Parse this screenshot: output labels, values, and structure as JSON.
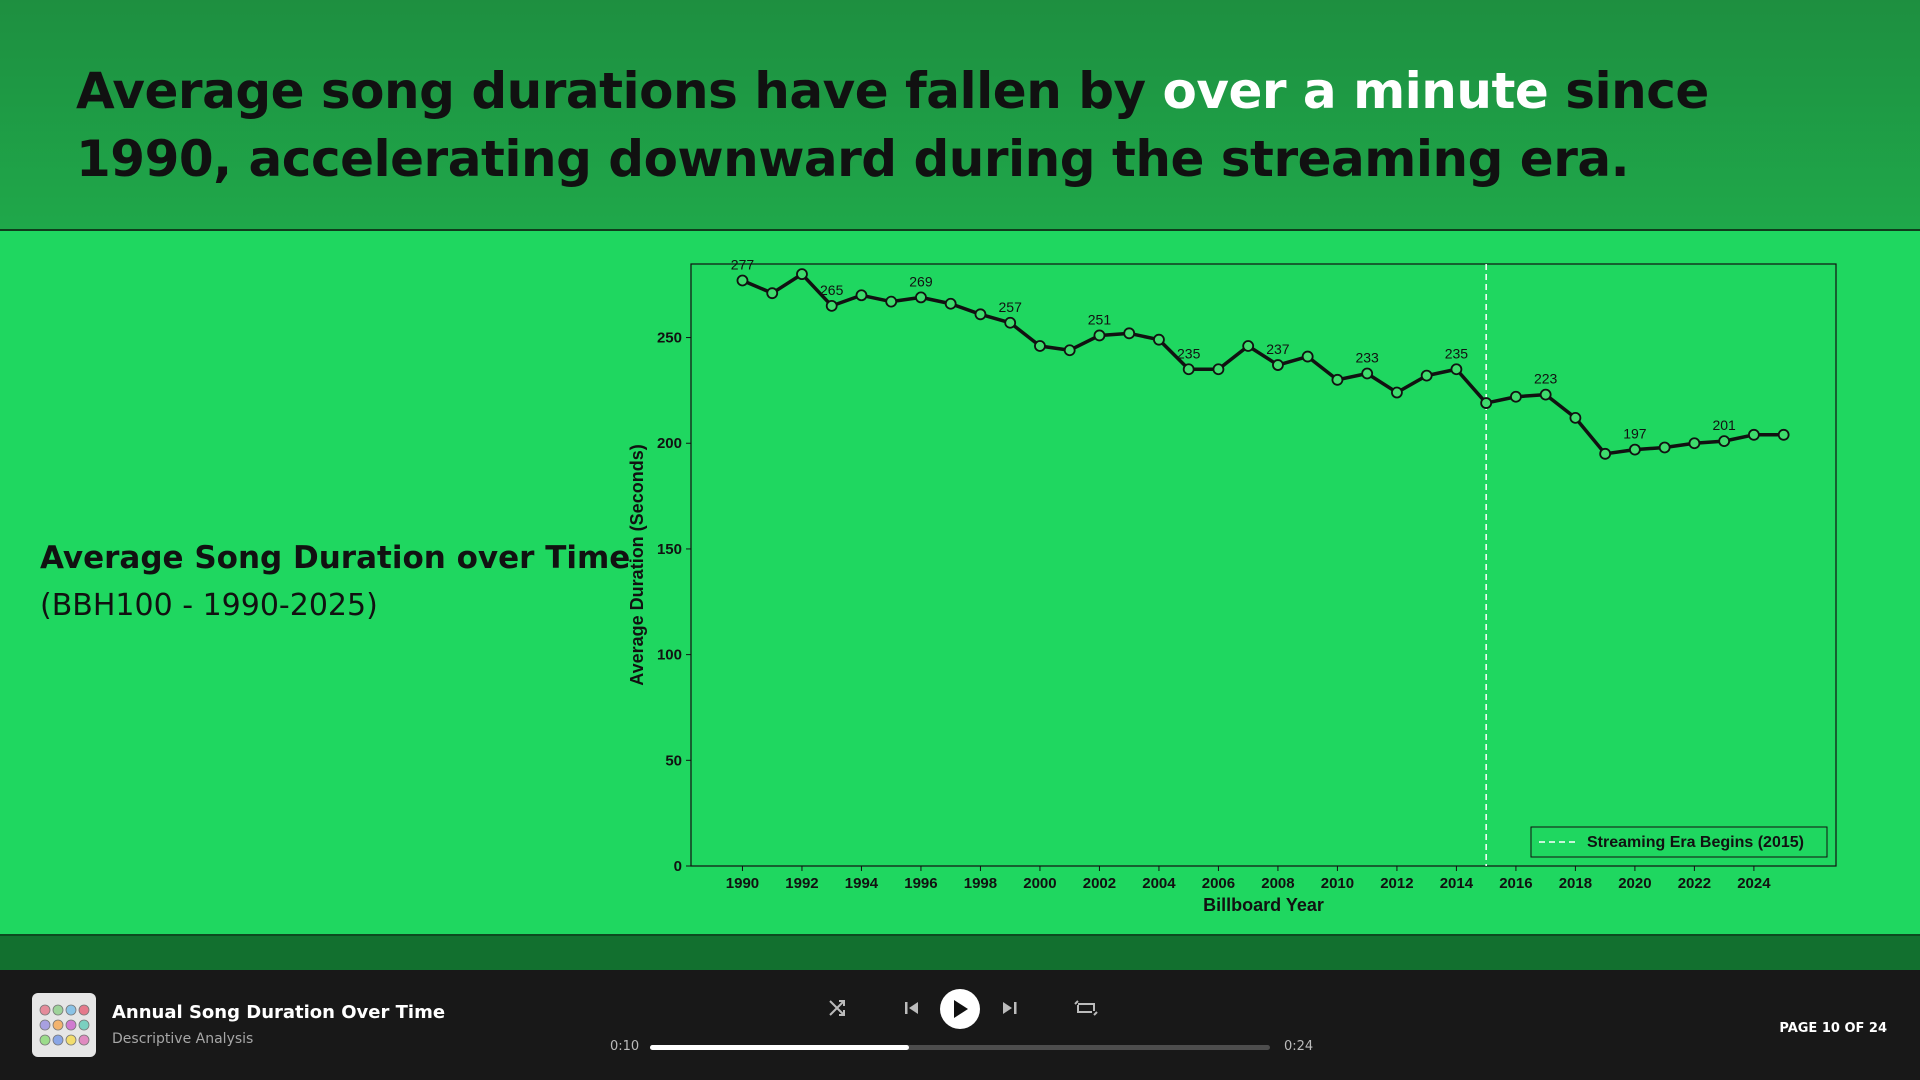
{
  "header": {
    "title_parts": [
      "Average song durations have fallen by ",
      "over a minute",
      " since",
      "1990, accelerating downward during the streaming era."
    ]
  },
  "side": {
    "title": "Average Song Duration over Time",
    "subtitle": "(BBH100 - 1990-2025)"
  },
  "chart_data": {
    "type": "line",
    "x": [
      1990,
      1991,
      1992,
      1993,
      1994,
      1995,
      1996,
      1997,
      1998,
      1999,
      2000,
      2001,
      2002,
      2003,
      2004,
      2005,
      2006,
      2007,
      2008,
      2009,
      2010,
      2011,
      2012,
      2013,
      2014,
      2015,
      2016,
      2017,
      2018,
      2019,
      2020,
      2021,
      2022,
      2023,
      2024,
      2025
    ],
    "values": [
      277,
      271,
      280,
      265,
      270,
      267,
      269,
      266,
      261,
      257,
      246,
      244,
      251,
      252,
      249,
      235,
      235,
      246,
      237,
      241,
      230,
      233,
      224,
      232,
      235,
      219,
      222,
      223,
      212,
      195,
      197,
      198,
      200,
      201,
      204,
      204
    ],
    "value_labels": [
      "277",
      null,
      null,
      "265",
      null,
      null,
      "269",
      null,
      null,
      "257",
      null,
      null,
      "251",
      null,
      null,
      "235",
      null,
      null,
      "237",
      null,
      null,
      "233",
      null,
      null,
      "235",
      null,
      null,
      "223",
      null,
      null,
      "197",
      null,
      null,
      "201",
      null,
      null
    ],
    "color": "#111111",
    "marker_color": "#3fdc6e",
    "xlabel": "Billboard Year",
    "ylabel": "Average Duration (Seconds)",
    "xlim": [
      1988.27,
      2026.76
    ],
    "ylim": [
      0,
      284.8
    ],
    "xticks": [
      1990,
      1992,
      1994,
      1996,
      1998,
      2000,
      2002,
      2004,
      2006,
      2008,
      2010,
      2012,
      2014,
      2016,
      2018,
      2020,
      2022,
      2024
    ],
    "yticks": [
      0,
      50,
      100,
      150,
      200,
      250
    ],
    "grid": false,
    "vline": {
      "x": 2015,
      "label": "Streaming Era Begins (2015)",
      "color": "#ffffff"
    },
    "legend": "lower right"
  },
  "player": {
    "track": "Annual Song Duration Over Time",
    "subtitle": "Descriptive Analysis",
    "elapsed": "0:10",
    "total": "0:24",
    "page": "PAGE 10 OF 24"
  }
}
